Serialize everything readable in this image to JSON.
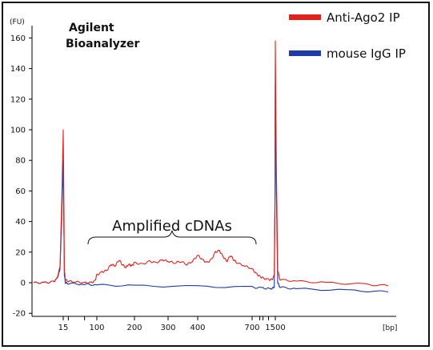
{
  "chart_data": {
    "type": "line",
    "title": "Agilent\nBioanalyzer",
    "y_unit": "(FU)",
    "x_unit": "[bp]",
    "ylim": [
      -20,
      165
    ],
    "yticks": [
      -20,
      0,
      20,
      40,
      60,
      80,
      100,
      120,
      140,
      160
    ],
    "xticks": [
      "15",
      "100",
      "200",
      "300",
      "400",
      "700",
      "1500"
    ],
    "x_scale": "log",
    "legend": {
      "position": "top-right"
    },
    "annotation": "Amplified cDNAs",
    "series": [
      {
        "name": "Anti-Ago2 IP",
        "color": "#e3211c",
        "points": [
          [
            8,
            0
          ],
          [
            10,
            0
          ],
          [
            12,
            0.5
          ],
          [
            13,
            2
          ],
          [
            14,
            10
          ],
          [
            14.5,
            50
          ],
          [
            15,
            100
          ],
          [
            15.5,
            60
          ],
          [
            16,
            8
          ],
          [
            17,
            2
          ],
          [
            20,
            1
          ],
          [
            30,
            0.5
          ],
          [
            50,
            0
          ],
          [
            70,
            0
          ],
          [
            90,
            1
          ],
          [
            100,
            5
          ],
          [
            110,
            7
          ],
          [
            120,
            8
          ],
          [
            130,
            12
          ],
          [
            140,
            11
          ],
          [
            150,
            15
          ],
          [
            160,
            12
          ],
          [
            170,
            10
          ],
          [
            180,
            12
          ],
          [
            190,
            11
          ],
          [
            200,
            13
          ],
          [
            220,
            12
          ],
          [
            240,
            14
          ],
          [
            260,
            13
          ],
          [
            280,
            15
          ],
          [
            300,
            14
          ],
          [
            320,
            13
          ],
          [
            340,
            14
          ],
          [
            360,
            12
          ],
          [
            380,
            14
          ],
          [
            400,
            18
          ],
          [
            420,
            15
          ],
          [
            440,
            13
          ],
          [
            460,
            15
          ],
          [
            480,
            20
          ],
          [
            500,
            21
          ],
          [
            520,
            17
          ],
          [
            540,
            14
          ],
          [
            560,
            18
          ],
          [
            580,
            15
          ],
          [
            600,
            13
          ],
          [
            650,
            11
          ],
          [
            700,
            9
          ],
          [
            800,
            6
          ],
          [
            900,
            4
          ],
          [
            1000,
            3
          ],
          [
            1200,
            2
          ],
          [
            1350,
            2
          ],
          [
            1450,
            5
          ],
          [
            1480,
            60
          ],
          [
            1500,
            158
          ],
          [
            1520,
            80
          ],
          [
            1550,
            8
          ],
          [
            1600,
            2
          ],
          [
            2000,
            1
          ],
          [
            3000,
            0
          ],
          [
            5000,
            -1
          ],
          [
            7000,
            -2
          ]
        ]
      },
      {
        "name": "mouse IgG IP",
        "color": "#1e3aa8",
        "points": [
          [
            8,
            0
          ],
          [
            10,
            0
          ],
          [
            12,
            0.5
          ],
          [
            13,
            2
          ],
          [
            14,
            8
          ],
          [
            14.5,
            40
          ],
          [
            15,
            80
          ],
          [
            15.5,
            40
          ],
          [
            16,
            5
          ],
          [
            17,
            0
          ],
          [
            20,
            -0.5
          ],
          [
            50,
            -1
          ],
          [
            100,
            -1.5
          ],
          [
            200,
            -2
          ],
          [
            400,
            -2.5
          ],
          [
            700,
            -3
          ],
          [
            1000,
            -3.5
          ],
          [
            1300,
            -4
          ],
          [
            1450,
            -3
          ],
          [
            1480,
            40
          ],
          [
            1500,
            130
          ],
          [
            1520,
            60
          ],
          [
            1550,
            0
          ],
          [
            1600,
            -3
          ],
          [
            2000,
            -4
          ],
          [
            4000,
            -5
          ],
          [
            7000,
            -6
          ]
        ]
      }
    ]
  }
}
